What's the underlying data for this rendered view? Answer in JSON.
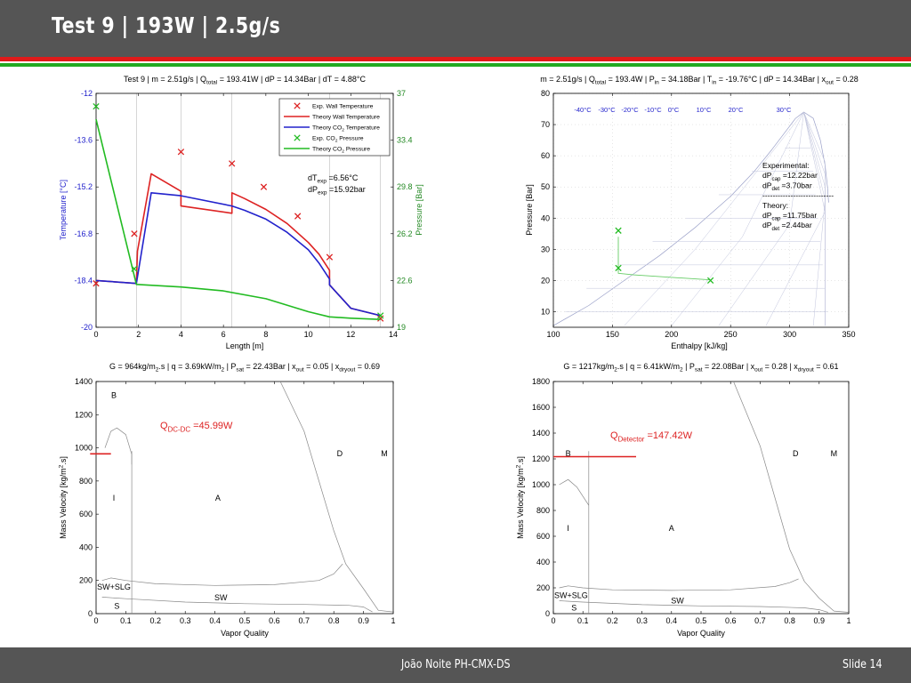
{
  "slide": {
    "title": "Test 9 |  193W | 2.5g/s",
    "footer_center": "João Noite PH-CMX-DS",
    "footer_right": "Slide 14",
    "colors": {
      "bar": "#555555",
      "red": "#e01a1a",
      "green": "#22aa22"
    }
  },
  "chart_data": [
    {
      "id": "temperature-pressure-vs-length",
      "type": "line",
      "title": [
        "Test 9 | m = 2.51g/s | Q",
        "total",
        " = 193.41W | dP = 14.34Bar | dT = 4.88°C"
      ],
      "xlabel": "Length [m]",
      "ylabel_left": "Temperature [°C]",
      "ylabel_right": "Pressure [Bar]",
      "xlim": [
        0,
        14
      ],
      "ylim_left": [
        -20,
        -12
      ],
      "ylim_right": [
        19,
        37
      ],
      "x_ticks": [
        0,
        2,
        4,
        6,
        8,
        10,
        12,
        14
      ],
      "y_ticks_left": [
        "-20",
        "-18.4",
        "-16.8",
        "-15.2",
        "-13.6",
        "-12"
      ],
      "y_ticks_right": [
        "19",
        "22.6",
        "26.2",
        "29.8",
        "33.4",
        "37"
      ],
      "vertical_lines": [
        1.9,
        4,
        6.4,
        11,
        13.4
      ],
      "legend": {
        "placement": "top-right",
        "entries": [
          [
            "Exp. Wall Temperature",
            ""
          ],
          [
            "Theory  Wall Temperature",
            ""
          ],
          [
            "Theory  CO",
            "2",
            " Temperature"
          ],
          [
            "Exp. CO",
            "2",
            " Pressure"
          ],
          [
            "Theory  CO",
            "2",
            " Pressure"
          ]
        ]
      },
      "annotations": [
        [
          "dT",
          "exp",
          " =6.56°C"
        ],
        [
          "dP",
          "exp",
          " =15.92bar"
        ]
      ],
      "series": [
        {
          "name": "Exp. Wall Temperature",
          "marker": "x",
          "color": "#dd2222",
          "axis": "left",
          "x": [
            0,
            1.8,
            4,
            6.4,
            7.9,
            9.5,
            11,
            13.4
          ],
          "y": [
            -18.5,
            -16.8,
            -14.0,
            -14.4,
            -15.2,
            -16.2,
            -17.6,
            -19.7
          ]
        },
        {
          "name": "Theory  Wall Temperature",
          "color": "#dd2222",
          "axis": "left",
          "x": [
            0,
            1.9,
            1.95,
            2.6,
            4,
            4,
            6.4,
            6.4,
            7,
            8,
            9,
            10,
            10.5,
            11,
            11,
            12,
            13.4
          ],
          "y": [
            -18.4,
            -18.5,
            -17.4,
            -14.75,
            -15.35,
            -15.85,
            -16.1,
            -15.4,
            -15.6,
            -15.97,
            -16.45,
            -17.1,
            -17.5,
            -18.05,
            -18.55,
            -19.35,
            -19.6
          ]
        },
        {
          "name": "Theory  CO2 Temperature",
          "color": "#2222cc",
          "axis": "left",
          "x": [
            0,
            1.9,
            2.6,
            4,
            6.4,
            7,
            8,
            9,
            10,
            10.5,
            11,
            11,
            12,
            13.4
          ],
          "y": [
            -18.4,
            -18.5,
            -15.4,
            -15.5,
            -15.85,
            -16.0,
            -16.3,
            -16.75,
            -17.35,
            -17.8,
            -18.35,
            -18.55,
            -19.35,
            -19.6
          ]
        },
        {
          "name": "Exp. CO2 Pressure",
          "marker": "x",
          "color": "#22bb22",
          "axis": "right",
          "x": [
            0,
            1.8,
            13.4
          ],
          "y": [
            36.0,
            23.5,
            19.9
          ]
        },
        {
          "name": "Theory  CO2 Pressure",
          "color": "#22bb22",
          "axis": "right",
          "x": [
            0,
            1.9,
            4,
            6,
            8,
            10,
            11,
            12,
            13.4
          ],
          "y": [
            35.0,
            22.3,
            22.1,
            21.8,
            21.2,
            20.2,
            19.8,
            19.7,
            19.6
          ]
        }
      ]
    },
    {
      "id": "pressure-enthalpy",
      "type": "line",
      "title": [
        "m = 2.51g/s | Q",
        "total",
        " = 193.4W | P",
        "in",
        " = 34.18Bar | T",
        "in",
        " = -19.76°C | dP = 14.34Bar | x",
        "out",
        " = 0.28"
      ],
      "xlabel": "Enthalpy [kJ/kg]",
      "ylabel": "Pressure [Bar]",
      "xlim": [
        100,
        350
      ],
      "ylim": [
        5,
        80
      ],
      "x_ticks": [
        100,
        150,
        200,
        250,
        300,
        350
      ],
      "y_ticks": [
        10,
        20,
        30,
        40,
        50,
        60,
        70,
        80
      ],
      "isotherm_labels": [
        "-40°C",
        "-30°C",
        "-20°C",
        "-10°C",
        "0°C",
        "10°C",
        "20°C",
        "30°C"
      ],
      "text_block": [
        [
          "Experimental:"
        ],
        [
          "dP",
          "cap",
          " =12.22bar"
        ],
        [
          "dP",
          "det",
          " =3.70bar"
        ],
        [
          "----------------------------"
        ],
        [
          "Theory:"
        ],
        [
          "dP",
          "cap",
          " =11.75bar"
        ],
        [
          "dP",
          "det",
          " =2.44bar"
        ]
      ],
      "series": [
        {
          "name": "Experimental points",
          "marker": "x",
          "color": "#22bb22",
          "x": [
            155,
            155,
            233
          ],
          "y": [
            36,
            24,
            20
          ]
        },
        {
          "name": "Theory path",
          "color": "#66cc66",
          "x": [
            155,
            155,
            168,
            233
          ],
          "y": [
            34,
            22.3,
            21.8,
            20.2
          ]
        }
      ]
    },
    {
      "id": "flow-map-left",
      "type": "line",
      "title": [
        "G = 964kg/m",
        "2",
        ".s | q = 3.69kW/m",
        "2",
        " | P",
        "sat",
        " = 22.43Bar | x",
        "out",
        " = 0.05 | x",
        "dryout",
        " = 0.69"
      ],
      "xlabel": "Vapor Quality",
      "ylabel": "Mass Velocity [kg/m",
      "ylabel_sup": "2",
      "ylabel_end": ".s]",
      "xlim": [
        0,
        1
      ],
      "ylim": [
        0,
        1400
      ],
      "x_ticks": [
        "0",
        "0.1",
        "0.2",
        "0.3",
        "0.4",
        "0.5",
        "0.6",
        "0.7",
        "0.8",
        "0.9",
        "1"
      ],
      "y_ticks": [
        "0",
        "200",
        "400",
        "600",
        "800",
        "1000",
        "1200",
        "1400"
      ],
      "region_labels": [
        "B",
        "I",
        "A",
        "D",
        "M",
        "SW+SLG",
        "SW",
        "S"
      ],
      "q_label": [
        "Q",
        "DC-DC",
        " =45.99W"
      ],
      "operating_line": {
        "x": [
          -0.02,
          0.05
        ],
        "y": [
          964,
          964
        ]
      }
    },
    {
      "id": "flow-map-right",
      "type": "line",
      "title": [
        "G = 1217kg/m",
        "2",
        ".s | q = 6.41kW/m",
        "2",
        " | P",
        "sat",
        " = 22.08Bar | x",
        "out",
        " = 0.28 | x",
        "dryout",
        " = 0.61"
      ],
      "xlabel": "Vapor Quality",
      "ylabel": "Mass Velocity [kg/m",
      "ylabel_sup": "2",
      "ylabel_end": ".s]",
      "xlim": [
        0,
        1
      ],
      "ylim": [
        0,
        1800
      ],
      "x_ticks": [
        "0",
        "0.1",
        "0.2",
        "0.3",
        "0.4",
        "0.5",
        "0.6",
        "0.7",
        "0.8",
        "0.9",
        "1"
      ],
      "y_ticks": [
        "0",
        "200",
        "400",
        "600",
        "800",
        "1000",
        "1200",
        "1400",
        "1600",
        "1800"
      ],
      "region_labels": [
        "B",
        "I",
        "A",
        "D",
        "M",
        "SW+SLG",
        "SW",
        "S"
      ],
      "q_label": [
        "Q",
        "Detector",
        " =147.42W"
      ],
      "operating_line": {
        "x": [
          0,
          0.28
        ],
        "y": [
          1217,
          1217
        ]
      }
    }
  ]
}
